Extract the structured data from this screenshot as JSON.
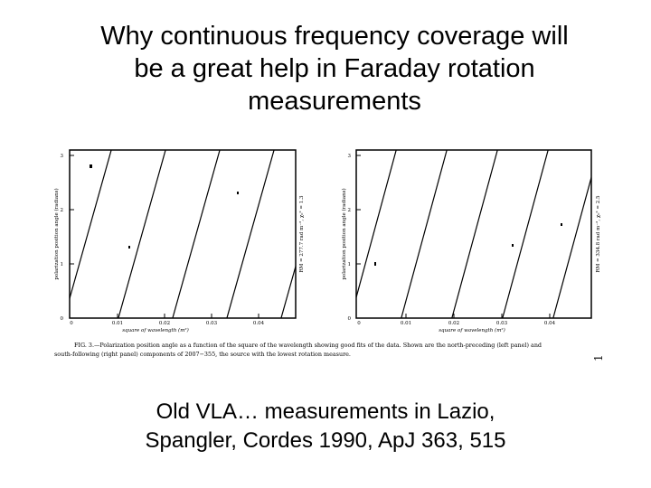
{
  "slide": {
    "title_lines": [
      "Why continuous frequency coverage will",
      "be a great help in Faraday rotation",
      "measurements"
    ],
    "subtitle_lines": [
      "Old VLA… measurements in Lazio,",
      "Spangler, Cordes 1990, ApJ 363, 515"
    ]
  },
  "figure": {
    "caption_line1": "FIG. 3.—Polarization position angle as a function of the square of the wavelength showing good fits of the data. Shown are the north-preceding (left panel) and",
    "caption_line2": "south-following (right panel) components of 2007−355, the source with the lowest rotation measure.",
    "page_number": "1",
    "left_panel": {
      "ylabel": "polarization position angle (radians)",
      "xlabel": "square of wavelength (m²)",
      "xticks": [
        "0",
        "0.01",
        "0.02",
        "0.03",
        "0.04"
      ],
      "yticks": [
        "0",
        "1",
        "2",
        "3"
      ],
      "fit_label": "RM = 277.7 rad m⁻², χ₀² = 1.3"
    },
    "right_panel": {
      "ylabel": "polarization position angle (radians)",
      "xlabel": "square of wavelength (m²)",
      "xticks": [
        "0",
        "0.01",
        "0.02",
        "0.03",
        "0.04"
      ],
      "yticks": [
        "0",
        "1",
        "2",
        "3"
      ],
      "fit_label": "RM = 334.8 rad m⁻², χ₀² = 2.5"
    }
  }
}
